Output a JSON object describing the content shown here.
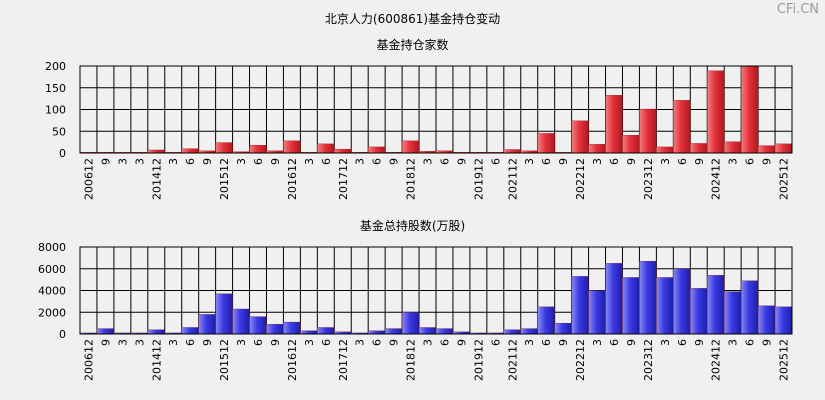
{
  "title": "北京人力(600861)基金持仓变动",
  "logo_text": "CFi.CN",
  "chart_data": [
    {
      "type": "bar",
      "title": "基金持仓家数",
      "ylim": [
        0,
        200
      ],
      "yticks": [
        0,
        50,
        100,
        150,
        200
      ],
      "grid": true,
      "color": "#e8303a",
      "categories": [
        "200612",
        "9",
        "3",
        "3",
        "201412",
        "3",
        "6",
        "9",
        "201512",
        "3",
        "6",
        "9",
        "201612",
        "3",
        "6",
        "201712",
        "3",
        "6",
        "9",
        "201812",
        "3",
        "6",
        "9",
        "201912",
        "6",
        "202112",
        "3",
        "6",
        "9",
        "202212",
        "3",
        "6",
        "9",
        "202312",
        "3",
        "6",
        "9",
        "202412",
        "3",
        "6",
        "9",
        "202512"
      ],
      "values": [
        1,
        1,
        1,
        1,
        7,
        1,
        10,
        5,
        24,
        3,
        18,
        5,
        28,
        2,
        21,
        9,
        2,
        14,
        1,
        28,
        4,
        5,
        1,
        1,
        1,
        8,
        5,
        45,
        1,
        74,
        20,
        133,
        41,
        101,
        14,
        121,
        22,
        189,
        26,
        199,
        17,
        21
      ]
    },
    {
      "type": "bar",
      "title": "基金总持股数(万股)",
      "ylim": [
        0,
        8000
      ],
      "yticks": [
        0,
        2000,
        4000,
        6000,
        8000
      ],
      "grid": true,
      "color": "#3838e0",
      "categories": [
        "200612",
        "9",
        "3",
        "3",
        "201412",
        "3",
        "6",
        "9",
        "201512",
        "3",
        "6",
        "9",
        "201612",
        "3",
        "6",
        "201712",
        "3",
        "6",
        "9",
        "201812",
        "3",
        "6",
        "9",
        "201912",
        "6",
        "202112",
        "3",
        "6",
        "9",
        "202212",
        "3",
        "6",
        "9",
        "202312",
        "3",
        "6",
        "9",
        "202412",
        "3",
        "6",
        "9",
        "202512"
      ],
      "values": [
        100,
        500,
        100,
        100,
        400,
        100,
        600,
        1800,
        3700,
        2300,
        1600,
        900,
        1100,
        300,
        600,
        200,
        100,
        300,
        500,
        2000,
        600,
        500,
        200,
        100,
        100,
        400,
        500,
        2500,
        1000,
        5300,
        4000,
        6500,
        5200,
        6700,
        5200,
        6000,
        4200,
        5400,
        3900,
        4900,
        2600,
        2500
      ]
    }
  ]
}
